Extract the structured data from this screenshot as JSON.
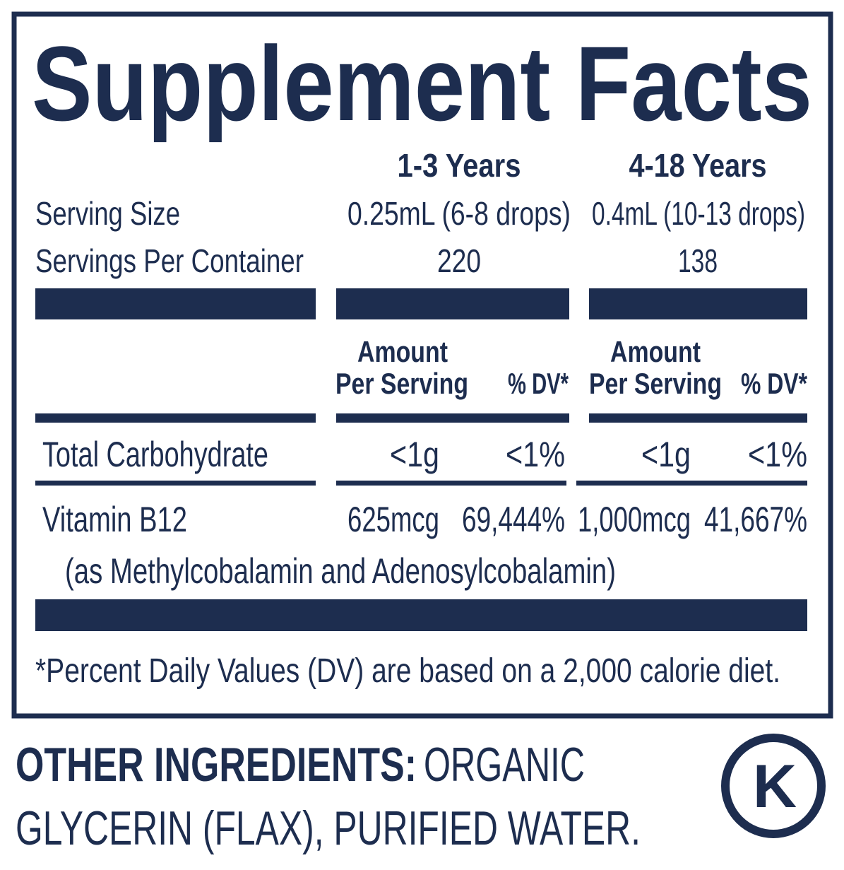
{
  "title": "Supplement Facts",
  "labels": {
    "serving_size": "Serving Size",
    "servings_per_container": "Servings Per Container"
  },
  "columns": [
    {
      "heading": "1-3 Years",
      "serving_size": "0.25mL (6-8 drops)",
      "servings_per_container": "220"
    },
    {
      "heading": "4-18 Years",
      "serving_size": "0.4mL (10-13 drops)",
      "servings_per_container": "138"
    }
  ],
  "amount_header_lines": [
    "Amount",
    "Per Serving"
  ],
  "dv_header": "% DV*",
  "nutrients": [
    {
      "name": "Total Carbohydrate",
      "values": [
        [
          "<1g",
          "<1%"
        ],
        [
          "<1g",
          "<1%"
        ]
      ]
    },
    {
      "name": "Vitamin B12",
      "note": "(as Methylcobalamin and Adenosylcobalamin)",
      "values": [
        [
          "625mcg",
          "69,444%"
        ],
        [
          "1,000mcg",
          "41,667%"
        ]
      ]
    }
  ],
  "footnote": "*Percent Daily Values (DV) are based on a 2,000 calorie diet.",
  "other_ingredients": {
    "label": "OTHER INGREDIENTS:",
    "text_lines": [
      "ORGANIC",
      "GLYCERIN (FLAX), PURIFIED WATER."
    ]
  },
  "kosher_mark": "K"
}
